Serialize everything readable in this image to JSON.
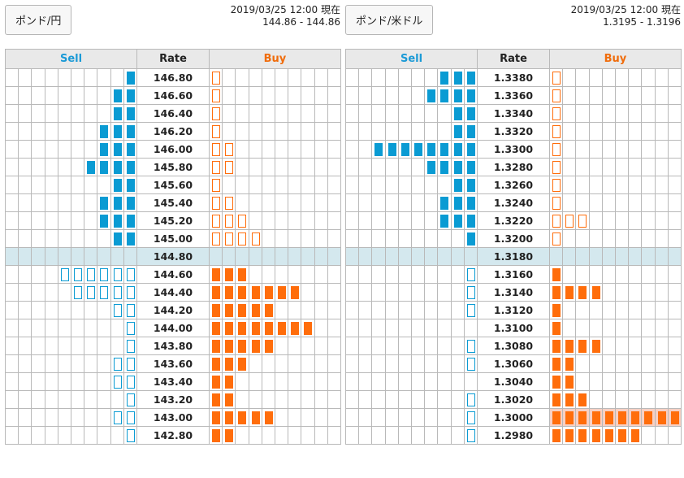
{
  "columns": {
    "sell": "Sell",
    "rate": "Rate",
    "buy": "Buy"
  },
  "colors": {
    "sell": "#0a9bd3",
    "buy": "#ff6d0b",
    "center_row": "#d4e8ee",
    "highlight": "#f7d0c4"
  },
  "panels": [
    {
      "pair": "ポンド/円",
      "timestamp": "2019/03/25 12:00 現在",
      "quote": "144.86 - 144.86",
      "rows": [
        {
          "rate": "146.80",
          "sell": 1,
          "sell_style": "filled",
          "buy": 1,
          "buy_style": "outline"
        },
        {
          "rate": "146.60",
          "sell": 2,
          "sell_style": "filled",
          "buy": 1,
          "buy_style": "outline"
        },
        {
          "rate": "146.40",
          "sell": 2,
          "sell_style": "filled",
          "buy": 1,
          "buy_style": "outline"
        },
        {
          "rate": "146.20",
          "sell": 3,
          "sell_style": "filled",
          "buy": 1,
          "buy_style": "outline"
        },
        {
          "rate": "146.00",
          "sell": 3,
          "sell_style": "filled",
          "buy": 2,
          "buy_style": "outline"
        },
        {
          "rate": "145.80",
          "sell": 4,
          "sell_style": "filled",
          "buy": 2,
          "buy_style": "outline"
        },
        {
          "rate": "145.60",
          "sell": 2,
          "sell_style": "filled",
          "buy": 1,
          "buy_style": "outline"
        },
        {
          "rate": "145.40",
          "sell": 3,
          "sell_style": "filled",
          "buy": 2,
          "buy_style": "outline"
        },
        {
          "rate": "145.20",
          "sell": 3,
          "sell_style": "filled",
          "buy": 3,
          "buy_style": "outline"
        },
        {
          "rate": "145.00",
          "sell": 2,
          "sell_style": "filled",
          "buy": 4,
          "buy_style": "outline"
        },
        {
          "rate": "144.80",
          "sell": 0,
          "sell_style": "filled",
          "buy": 0,
          "buy_style": "filled",
          "center": true
        },
        {
          "rate": "144.60",
          "sell": 6,
          "sell_style": "outline",
          "buy": 3,
          "buy_style": "filled"
        },
        {
          "rate": "144.40",
          "sell": 5,
          "sell_style": "outline",
          "buy": 7,
          "buy_style": "filled"
        },
        {
          "rate": "144.20",
          "sell": 2,
          "sell_style": "outline",
          "buy": 5,
          "buy_style": "filled"
        },
        {
          "rate": "144.00",
          "sell": 1,
          "sell_style": "outline",
          "buy": 8,
          "buy_style": "filled"
        },
        {
          "rate": "143.80",
          "sell": 1,
          "sell_style": "outline",
          "buy": 5,
          "buy_style": "filled"
        },
        {
          "rate": "143.60",
          "sell": 2,
          "sell_style": "outline",
          "buy": 3,
          "buy_style": "filled"
        },
        {
          "rate": "143.40",
          "sell": 2,
          "sell_style": "outline",
          "buy": 2,
          "buy_style": "filled"
        },
        {
          "rate": "143.20",
          "sell": 1,
          "sell_style": "outline",
          "buy": 2,
          "buy_style": "filled"
        },
        {
          "rate": "143.00",
          "sell": 2,
          "sell_style": "outline",
          "buy": 5,
          "buy_style": "filled"
        },
        {
          "rate": "142.80",
          "sell": 1,
          "sell_style": "outline",
          "buy": 2,
          "buy_style": "filled"
        }
      ]
    },
    {
      "pair": "ポンド/米ドル",
      "timestamp": "2019/03/25 12:00 現在",
      "quote": "1.3195 - 1.3196",
      "rows": [
        {
          "rate": "1.3380",
          "sell": 3,
          "sell_style": "filled",
          "buy": 1,
          "buy_style": "outline"
        },
        {
          "rate": "1.3360",
          "sell": 4,
          "sell_style": "filled",
          "buy": 1,
          "buy_style": "outline"
        },
        {
          "rate": "1.3340",
          "sell": 2,
          "sell_style": "filled",
          "buy": 1,
          "buy_style": "outline"
        },
        {
          "rate": "1.3320",
          "sell": 2,
          "sell_style": "filled",
          "buy": 1,
          "buy_style": "outline"
        },
        {
          "rate": "1.3300",
          "sell": 8,
          "sell_style": "filled",
          "buy": 1,
          "buy_style": "outline"
        },
        {
          "rate": "1.3280",
          "sell": 4,
          "sell_style": "filled",
          "buy": 1,
          "buy_style": "outline"
        },
        {
          "rate": "1.3260",
          "sell": 2,
          "sell_style": "filled",
          "buy": 1,
          "buy_style": "outline"
        },
        {
          "rate": "1.3240",
          "sell": 3,
          "sell_style": "filled",
          "buy": 1,
          "buy_style": "outline"
        },
        {
          "rate": "1.3220",
          "sell": 3,
          "sell_style": "filled",
          "buy": 3,
          "buy_style": "outline"
        },
        {
          "rate": "1.3200",
          "sell": 1,
          "sell_style": "filled",
          "buy": 1,
          "buy_style": "outline"
        },
        {
          "rate": "1.3180",
          "sell": 0,
          "sell_style": "filled",
          "buy": 0,
          "buy_style": "filled",
          "center": true
        },
        {
          "rate": "1.3160",
          "sell": 1,
          "sell_style": "outline",
          "buy": 1,
          "buy_style": "filled"
        },
        {
          "rate": "1.3140",
          "sell": 1,
          "sell_style": "outline",
          "buy": 4,
          "buy_style": "filled"
        },
        {
          "rate": "1.3120",
          "sell": 1,
          "sell_style": "outline",
          "buy": 1,
          "buy_style": "filled"
        },
        {
          "rate": "1.3100",
          "sell": 0,
          "sell_style": "outline",
          "buy": 1,
          "buy_style": "filled"
        },
        {
          "rate": "1.3080",
          "sell": 1,
          "sell_style": "outline",
          "buy": 4,
          "buy_style": "filled"
        },
        {
          "rate": "1.3060",
          "sell": 1,
          "sell_style": "outline",
          "buy": 2,
          "buy_style": "filled"
        },
        {
          "rate": "1.3040",
          "sell": 0,
          "sell_style": "outline",
          "buy": 2,
          "buy_style": "filled"
        },
        {
          "rate": "1.3020",
          "sell": 1,
          "sell_style": "outline",
          "buy": 3,
          "buy_style": "filled"
        },
        {
          "rate": "1.3000",
          "sell": 1,
          "sell_style": "outline",
          "buy": 10,
          "buy_style": "filled",
          "highlight": true
        },
        {
          "rate": "1.2980",
          "sell": 1,
          "sell_style": "outline",
          "buy": 7,
          "buy_style": "filled"
        }
      ]
    }
  ]
}
